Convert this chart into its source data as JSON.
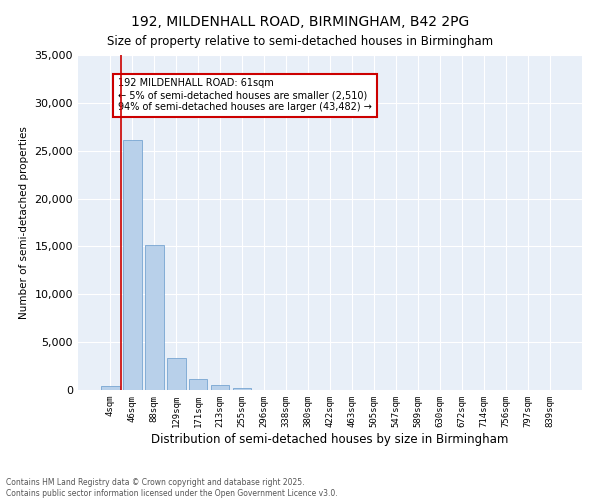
{
  "title": "192, MILDENHALL ROAD, BIRMINGHAM, B42 2PG",
  "subtitle": "Size of property relative to semi-detached houses in Birmingham",
  "xlabel": "Distribution of semi-detached houses by size in Birmingham",
  "ylabel": "Number of semi-detached properties",
  "bin_labels": [
    "4sqm",
    "46sqm",
    "88sqm",
    "129sqm",
    "171sqm",
    "213sqm",
    "255sqm",
    "296sqm",
    "338sqm",
    "380sqm",
    "422sqm",
    "463sqm",
    "505sqm",
    "547sqm",
    "589sqm",
    "630sqm",
    "672sqm",
    "714sqm",
    "756sqm",
    "797sqm",
    "839sqm"
  ],
  "bar_values": [
    380,
    26100,
    15100,
    3300,
    1100,
    500,
    200,
    50,
    10,
    5,
    2,
    1,
    1,
    0,
    0,
    0,
    0,
    0,
    0,
    0,
    0
  ],
  "bar_color": "#b8d0ea",
  "bar_edge_color": "#6699cc",
  "background_color": "#e8eff8",
  "grid_color": "#ffffff",
  "annotation_box_color": "#cc0000",
  "vline_color": "#cc0000",
  "annotation_title": "192 MILDENHALL ROAD: 61sqm",
  "annotation_line1": "← 5% of semi-detached houses are smaller (2,510)",
  "annotation_line2": "94% of semi-detached houses are larger (43,482) →",
  "footer_line1": "Contains HM Land Registry data © Crown copyright and database right 2025.",
  "footer_line2": "Contains public sector information licensed under the Open Government Licence v3.0.",
  "ylim": [
    0,
    35000
  ],
  "yticks": [
    0,
    5000,
    10000,
    15000,
    20000,
    25000,
    30000,
    35000
  ]
}
